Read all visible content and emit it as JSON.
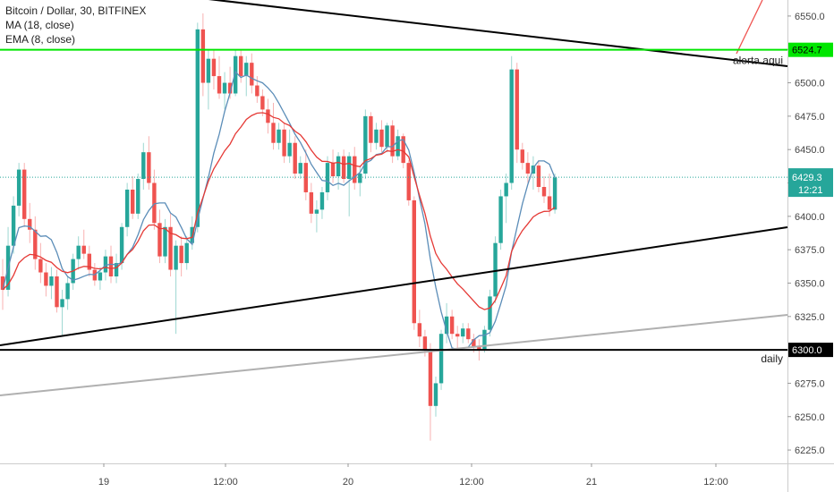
{
  "header": {
    "symbol_line": "Bitcoin / Dollar, 30, BITFINEX",
    "indicator_ma": "MA (18, close)",
    "indicator_ema": "EMA (8, close)"
  },
  "colors": {
    "up": "#26a69a",
    "down": "#ef5350",
    "ma": "#5b8db8",
    "ema": "#e53935",
    "green_level": "#00e600",
    "trend": "#000000",
    "grey_trend": "#b0b0b0"
  },
  "chart_data": {
    "type": "candlestick",
    "ylim": [
      6215,
      6562
    ],
    "y_ticks": [
      6225.0,
      6250.0,
      6275.0,
      6300.0,
      6325.0,
      6350.0,
      6375.0,
      6400.0,
      6425.0,
      6450.0,
      6475.0,
      6500.0,
      6525.0,
      6550.0
    ],
    "x_ticks": [
      "19",
      "12:00",
      "20",
      "12:00",
      "21",
      "12:00"
    ],
    "price_labels": {
      "level_green": "6524.7",
      "last_price": "6429.3",
      "countdown": "12:21",
      "level_daily": "6300.0"
    },
    "annotations": {
      "alerta": "alerta aqui",
      "daily": "daily"
    },
    "levels": {
      "green": 6524.7,
      "daily": 6300.0,
      "last": 6429.3
    },
    "candles": [
      {
        "o": 6355,
        "h": 6368,
        "l": 6330,
        "c": 6345
      },
      {
        "o": 6345,
        "h": 6392,
        "l": 6340,
        "c": 6378
      },
      {
        "o": 6378,
        "h": 6415,
        "l": 6372,
        "c": 6408
      },
      {
        "o": 6408,
        "h": 6440,
        "l": 6400,
        "c": 6435
      },
      {
        "o": 6435,
        "h": 6440,
        "l": 6392,
        "c": 6398
      },
      {
        "o": 6398,
        "h": 6410,
        "l": 6380,
        "c": 6390
      },
      {
        "o": 6390,
        "h": 6400,
        "l": 6360,
        "c": 6368
      },
      {
        "o": 6368,
        "h": 6380,
        "l": 6350,
        "c": 6358
      },
      {
        "o": 6358,
        "h": 6365,
        "l": 6340,
        "c": 6348
      },
      {
        "o": 6348,
        "h": 6362,
        "l": 6338,
        "c": 6355
      },
      {
        "o": 6355,
        "h": 6360,
        "l": 6328,
        "c": 6332
      },
      {
        "o": 6332,
        "h": 6345,
        "l": 6310,
        "c": 6338
      },
      {
        "o": 6338,
        "h": 6355,
        "l": 6330,
        "c": 6350
      },
      {
        "o": 6350,
        "h": 6372,
        "l": 6345,
        "c": 6368
      },
      {
        "o": 6368,
        "h": 6385,
        "l": 6360,
        "c": 6378
      },
      {
        "o": 6378,
        "h": 6390,
        "l": 6368,
        "c": 6372
      },
      {
        "o": 6372,
        "h": 6378,
        "l": 6355,
        "c": 6360
      },
      {
        "o": 6360,
        "h": 6365,
        "l": 6348,
        "c": 6352
      },
      {
        "o": 6352,
        "h": 6362,
        "l": 6345,
        "c": 6358
      },
      {
        "o": 6358,
        "h": 6375,
        "l": 6352,
        "c": 6370
      },
      {
        "o": 6370,
        "h": 6378,
        "l": 6350,
        "c": 6355
      },
      {
        "o": 6355,
        "h": 6372,
        "l": 6350,
        "c": 6365
      },
      {
        "o": 6365,
        "h": 6395,
        "l": 6360,
        "c": 6392
      },
      {
        "o": 6392,
        "h": 6425,
        "l": 6385,
        "c": 6420
      },
      {
        "o": 6420,
        "h": 6430,
        "l": 6398,
        "c": 6402
      },
      {
        "o": 6402,
        "h": 6432,
        "l": 6398,
        "c": 6428
      },
      {
        "o": 6428,
        "h": 6455,
        "l": 6420,
        "c": 6448
      },
      {
        "o": 6448,
        "h": 6460,
        "l": 6420,
        "c": 6425
      },
      {
        "o": 6425,
        "h": 6435,
        "l": 6390,
        "c": 6395
      },
      {
        "o": 6395,
        "h": 6405,
        "l": 6365,
        "c": 6370
      },
      {
        "o": 6370,
        "h": 6398,
        "l": 6365,
        "c": 6392
      },
      {
        "o": 6392,
        "h": 6402,
        "l": 6355,
        "c": 6360
      },
      {
        "o": 6360,
        "h": 6382,
        "l": 6312,
        "c": 6378
      },
      {
        "o": 6378,
        "h": 6385,
        "l": 6355,
        "c": 6365
      },
      {
        "o": 6365,
        "h": 6385,
        "l": 6360,
        "c": 6380
      },
      {
        "o": 6380,
        "h": 6400,
        "l": 6375,
        "c": 6392
      },
      {
        "o": 6392,
        "h": 6545,
        "l": 6388,
        "c": 6540
      },
      {
        "o": 6540,
        "h": 6552,
        "l": 6490,
        "c": 6500
      },
      {
        "o": 6500,
        "h": 6525,
        "l": 6480,
        "c": 6518
      },
      {
        "o": 6518,
        "h": 6525,
        "l": 6495,
        "c": 6505
      },
      {
        "o": 6505,
        "h": 6520,
        "l": 6488,
        "c": 6492
      },
      {
        "o": 6492,
        "h": 6508,
        "l": 6480,
        "c": 6500
      },
      {
        "o": 6500,
        "h": 6512,
        "l": 6488,
        "c": 6492
      },
      {
        "o": 6492,
        "h": 6525,
        "l": 6490,
        "c": 6520
      },
      {
        "o": 6520,
        "h": 6525,
        "l": 6500,
        "c": 6505
      },
      {
        "o": 6505,
        "h": 6520,
        "l": 6490,
        "c": 6515
      },
      {
        "o": 6515,
        "h": 6522,
        "l": 6492,
        "c": 6498
      },
      {
        "o": 6498,
        "h": 6505,
        "l": 6485,
        "c": 6490
      },
      {
        "o": 6490,
        "h": 6495,
        "l": 6475,
        "c": 6480
      },
      {
        "o": 6480,
        "h": 6488,
        "l": 6462,
        "c": 6470
      },
      {
        "o": 6470,
        "h": 6485,
        "l": 6450,
        "c": 6455
      },
      {
        "o": 6455,
        "h": 6470,
        "l": 6450,
        "c": 6465
      },
      {
        "o": 6465,
        "h": 6470,
        "l": 6440,
        "c": 6445
      },
      {
        "o": 6445,
        "h": 6465,
        "l": 6440,
        "c": 6455
      },
      {
        "o": 6455,
        "h": 6460,
        "l": 6428,
        "c": 6432
      },
      {
        "o": 6432,
        "h": 6445,
        "l": 6428,
        "c": 6440
      },
      {
        "o": 6440,
        "h": 6450,
        "l": 6412,
        "c": 6418
      },
      {
        "o": 6418,
        "h": 6425,
        "l": 6395,
        "c": 6402
      },
      {
        "o": 6402,
        "h": 6412,
        "l": 6388,
        "c": 6405
      },
      {
        "o": 6405,
        "h": 6422,
        "l": 6398,
        "c": 6418
      },
      {
        "o": 6418,
        "h": 6445,
        "l": 6412,
        "c": 6440
      },
      {
        "o": 6440,
        "h": 6450,
        "l": 6425,
        "c": 6430
      },
      {
        "o": 6430,
        "h": 6448,
        "l": 6420,
        "c": 6445
      },
      {
        "o": 6445,
        "h": 6450,
        "l": 6425,
        "c": 6428
      },
      {
        "o": 6428,
        "h": 6448,
        "l": 6400,
        "c": 6445
      },
      {
        "o": 6445,
        "h": 6452,
        "l": 6420,
        "c": 6425
      },
      {
        "o": 6425,
        "h": 6438,
        "l": 6415,
        "c": 6432
      },
      {
        "o": 6432,
        "h": 6480,
        "l": 6428,
        "c": 6475
      },
      {
        "o": 6475,
        "h": 6478,
        "l": 6448,
        "c": 6455
      },
      {
        "o": 6455,
        "h": 6470,
        "l": 6450,
        "c": 6465
      },
      {
        "o": 6465,
        "h": 6472,
        "l": 6448,
        "c": 6452
      },
      {
        "o": 6452,
        "h": 6470,
        "l": 6448,
        "c": 6468
      },
      {
        "o": 6468,
        "h": 6472,
        "l": 6440,
        "c": 6445
      },
      {
        "o": 6445,
        "h": 6465,
        "l": 6442,
        "c": 6460
      },
      {
        "o": 6460,
        "h": 6462,
        "l": 6436,
        "c": 6440
      },
      {
        "o": 6440,
        "h": 6442,
        "l": 6408,
        "c": 6412
      },
      {
        "o": 6412,
        "h": 6415,
        "l": 6315,
        "c": 6320
      },
      {
        "o": 6320,
        "h": 6330,
        "l": 6302,
        "c": 6310
      },
      {
        "o": 6310,
        "h": 6315,
        "l": 6295,
        "c": 6300
      },
      {
        "o": 6300,
        "h": 6305,
        "l": 6232,
        "c": 6258
      },
      {
        "o": 6258,
        "h": 6280,
        "l": 6250,
        "c": 6275
      },
      {
        "o": 6275,
        "h": 6315,
        "l": 6270,
        "c": 6312
      },
      {
        "o": 6312,
        "h": 6335,
        "l": 6305,
        "c": 6325
      },
      {
        "o": 6325,
        "h": 6330,
        "l": 6308,
        "c": 6312
      },
      {
        "o": 6312,
        "h": 6318,
        "l": 6300,
        "c": 6310
      },
      {
        "o": 6310,
        "h": 6320,
        "l": 6305,
        "c": 6316
      },
      {
        "o": 6316,
        "h": 6320,
        "l": 6305,
        "c": 6308
      },
      {
        "o": 6308,
        "h": 6312,
        "l": 6298,
        "c": 6302
      },
      {
        "o": 6302,
        "h": 6308,
        "l": 6292,
        "c": 6300
      },
      {
        "o": 6300,
        "h": 6318,
        "l": 6298,
        "c": 6315
      },
      {
        "o": 6315,
        "h": 6345,
        "l": 6310,
        "c": 6340
      },
      {
        "o": 6340,
        "h": 6385,
        "l": 6335,
        "c": 6380
      },
      {
        "o": 6380,
        "h": 6420,
        "l": 6375,
        "c": 6415
      },
      {
        "o": 6415,
        "h": 6432,
        "l": 6395,
        "c": 6425
      },
      {
        "o": 6425,
        "h": 6520,
        "l": 6420,
        "c": 6510
      },
      {
        "o": 6510,
        "h": 6515,
        "l": 6440,
        "c": 6450
      },
      {
        "o": 6450,
        "h": 6455,
        "l": 6435,
        "c": 6440
      },
      {
        "o": 6440,
        "h": 6448,
        "l": 6425,
        "c": 6432
      },
      {
        "o": 6432,
        "h": 6445,
        "l": 6420,
        "c": 6438
      },
      {
        "o": 6438,
        "h": 6442,
        "l": 6418,
        "c": 6422
      },
      {
        "o": 6422,
        "h": 6430,
        "l": 6410,
        "c": 6415
      },
      {
        "o": 6415,
        "h": 6432,
        "l": 6400,
        "c": 6405
      },
      {
        "o": 6405,
        "h": 6432,
        "l": 6402,
        "c": 6429
      }
    ]
  }
}
